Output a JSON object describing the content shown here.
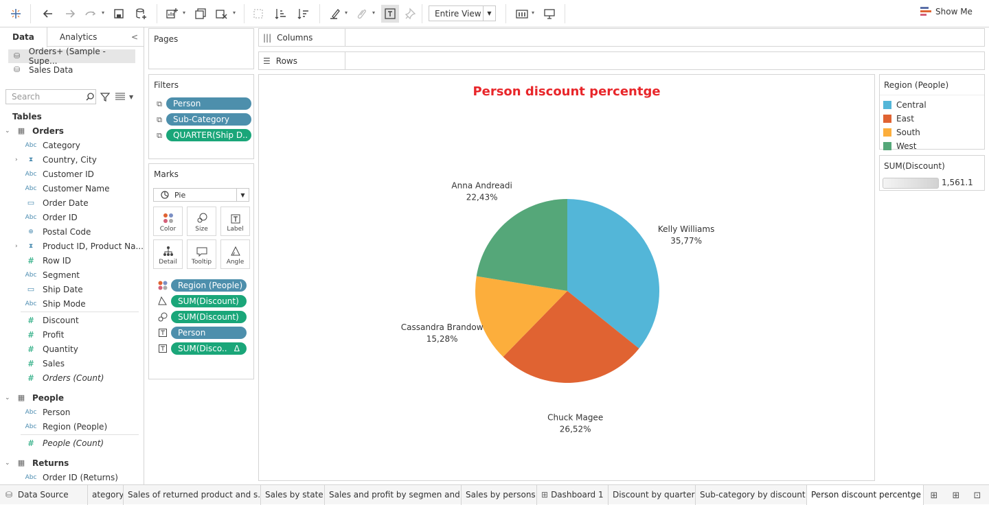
{
  "toolbar": {
    "fit_value": "Entire View",
    "show_me_label": "Show Me"
  },
  "data_pane": {
    "tabs": [
      "Data",
      "Analytics"
    ],
    "datasources": [
      "Orders+ (Sample - Supe...",
      "Sales Data"
    ],
    "search_placeholder": "Search",
    "tables_label": "Tables",
    "tables": [
      {
        "name": "Orders",
        "fields": [
          {
            "name": "Category",
            "type": "Abc"
          },
          {
            "name": "Country, City",
            "type": "hier"
          },
          {
            "name": "Customer ID",
            "type": "Abc"
          },
          {
            "name": "Customer Name",
            "type": "Abc"
          },
          {
            "name": "Order Date",
            "type": "date"
          },
          {
            "name": "Order ID",
            "type": "Abc"
          },
          {
            "name": "Postal Code",
            "type": "geo"
          },
          {
            "name": "Product ID, Product Na...",
            "type": "hier"
          },
          {
            "name": "Row ID",
            "type": "#"
          },
          {
            "name": "Segment",
            "type": "Abc"
          },
          {
            "name": "Ship Date",
            "type": "date"
          },
          {
            "name": "Ship Mode",
            "type": "Abc"
          }
        ],
        "measures": [
          "Discount",
          "Profit",
          "Quantity",
          "Sales",
          "Orders (Count)"
        ]
      },
      {
        "name": "People",
        "fields": [
          {
            "name": "Person",
            "type": "Abc"
          },
          {
            "name": "Region (People)",
            "type": "Abc"
          }
        ],
        "measures": [
          "People (Count)"
        ]
      },
      {
        "name": "Returns",
        "fields": [
          {
            "name": "Order ID (Returns)",
            "type": "Abc"
          }
        ]
      }
    ]
  },
  "shelves": {
    "pages_label": "Pages",
    "filters_label": "Filters",
    "filters": [
      "Person",
      "Sub-Category",
      "QUARTER(Ship D.."
    ],
    "marks_label": "Marks",
    "mark_type": "Pie",
    "mark_buttons": [
      "Color",
      "Size",
      "Label",
      "Detail",
      "Tooltip",
      "Angle"
    ],
    "mark_pills": [
      "Region (People)",
      "SUM(Discount)",
      "SUM(Discount)",
      "Person",
      "SUM(Disco.."
    ],
    "columns_label": "Columns",
    "rows_label": "Rows"
  },
  "view": {
    "title": "Person discount percentge",
    "title_color": "#e8262a"
  },
  "chart_data": {
    "type": "pie",
    "title": "Person discount percentge",
    "slices": [
      {
        "label": "Kelly Williams",
        "value": 35.77,
        "value_label": "35,77%",
        "region": "Central",
        "color": "#53b6d8"
      },
      {
        "label": "Chuck Magee",
        "value": 26.52,
        "value_label": "26,52%",
        "region": "East",
        "color": "#e06332"
      },
      {
        "label": "Cassandra Brandow",
        "value": 15.28,
        "value_label": "15,28%",
        "region": "South",
        "color": "#fcae3c"
      },
      {
        "label": "Anna Andreadi",
        "value": 22.43,
        "value_label": "22,43%",
        "region": "West",
        "color": "#55a779"
      }
    ]
  },
  "legend": {
    "title": "Region (People)",
    "items": [
      {
        "name": "Central",
        "color": "#53b6d8"
      },
      {
        "name": "East",
        "color": "#e06332"
      },
      {
        "name": "South",
        "color": "#fcae3c"
      },
      {
        "name": "West",
        "color": "#55a779"
      }
    ],
    "size_title": "SUM(Discount)",
    "size_value": "1,561.1"
  },
  "sheet_tabs": {
    "data_source": "Data Source",
    "tabs": [
      "ategory",
      "Sales of returned product and s...",
      "Sales by state",
      "Sales and profit by segmen and ...",
      "Sales by persons",
      "Dashboard 1",
      "Discount by quarter",
      "Sub-category by discount",
      "Person discount percentge"
    ]
  }
}
